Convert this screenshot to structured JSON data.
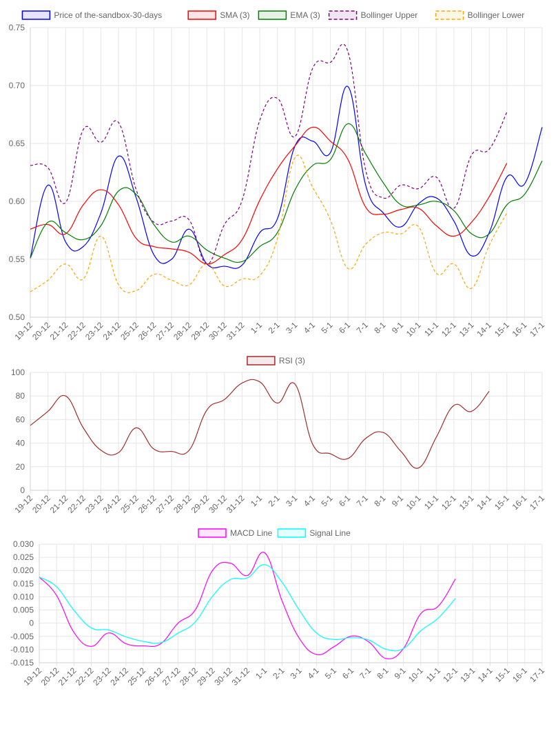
{
  "chart_data": [
    {
      "type": "line",
      "categories": [
        "19-12",
        "20-12",
        "21-12",
        "22-12",
        "23-12",
        "24-12",
        "25-12",
        "26-12",
        "27-12",
        "28-12",
        "29-12",
        "30-12",
        "31-12",
        "1-1",
        "2-1",
        "3-1",
        "4-1",
        "5-1",
        "6-1",
        "7-1",
        "8-1",
        "9-1",
        "10-1",
        "11-1",
        "12-1",
        "13-1",
        "14-1",
        "15-1",
        "16-1",
        "17-1"
      ],
      "ylim": [
        0.5,
        0.75
      ],
      "yticks": [
        "0.75",
        "0.70",
        "0.65",
        "0.60",
        "0.55",
        "0.50"
      ],
      "grid": true,
      "legend": "top",
      "series": [
        {
          "name": "Price of the-sandbox-30-days",
          "color": "#0000ff",
          "dashed": false,
          "values": [
            0.551,
            0.614,
            0.565,
            0.561,
            0.59,
            0.639,
            0.603,
            0.554,
            0.55,
            0.576,
            0.546,
            0.544,
            0.545,
            0.573,
            0.585,
            0.648,
            0.652,
            0.642,
            0.699,
            0.614,
            0.59,
            0.578,
            0.598,
            0.603,
            0.583,
            0.553,
            0.573,
            0.621,
            0.615,
            0.664
          ]
        },
        {
          "name": "SMA (3)",
          "color": "#ff0000",
          "dashed": false,
          "values": [
            0.576,
            0.58,
            0.572,
            0.597,
            0.61,
            0.597,
            0.568,
            0.561,
            0.559,
            0.556,
            0.546,
            0.554,
            0.567,
            0.601,
            0.628,
            0.648,
            0.664,
            0.652,
            0.636,
            0.595,
            0.589,
            0.593,
            0.594,
            0.579,
            0.57,
            0.582,
            0.604,
            0.633,
            null,
            null
          ]
        },
        {
          "name": "EMA (3)",
          "color": "#008000",
          "dashed": false,
          "values": [
            0.551,
            0.582,
            0.573,
            0.567,
            0.579,
            0.609,
            0.606,
            0.58,
            0.565,
            0.57,
            0.558,
            0.551,
            0.548,
            0.561,
            0.573,
            0.61,
            0.631,
            0.636,
            0.667,
            0.641,
            0.616,
            0.597,
            0.597,
            0.6,
            0.592,
            0.572,
            0.572,
            0.597,
            0.606,
            0.635
          ]
        },
        {
          "name": "Bollinger Upper",
          "color": "#800080",
          "dashed": true,
          "values": [
            0.631,
            0.629,
            0.599,
            0.662,
            0.651,
            0.668,
            0.61,
            0.582,
            0.583,
            0.584,
            0.546,
            0.58,
            0.601,
            0.67,
            0.689,
            0.656,
            0.715,
            0.72,
            0.729,
            0.627,
            0.603,
            0.614,
            0.611,
            0.621,
            0.594,
            0.64,
            0.645,
            0.677,
            null,
            null
          ]
        },
        {
          "name": "Bollinger Lower",
          "color": "#ffa500",
          "dashed": true,
          "values": [
            0.522,
            0.532,
            0.546,
            0.533,
            0.57,
            0.528,
            0.523,
            0.537,
            0.532,
            0.528,
            0.546,
            0.527,
            0.533,
            0.536,
            0.568,
            0.638,
            0.612,
            0.584,
            0.542,
            0.563,
            0.573,
            0.572,
            0.578,
            0.538,
            0.546,
            0.525,
            0.562,
            0.59,
            null,
            null
          ]
        }
      ]
    },
    {
      "type": "line",
      "categories": [
        "19-12",
        "20-12",
        "21-12",
        "22-12",
        "23-12",
        "24-12",
        "25-12",
        "26-12",
        "27-12",
        "28-12",
        "29-12",
        "30-12",
        "31-12",
        "1-1",
        "2-1",
        "3-1",
        "4-1",
        "5-1",
        "6-1",
        "7-1",
        "8-1",
        "9-1",
        "10-1",
        "11-1",
        "12-1",
        "13-1",
        "14-1",
        "15-1",
        "16-1",
        "17-1"
      ],
      "ylim": [
        0,
        100
      ],
      "yticks": [
        "100",
        "80",
        "60",
        "40",
        "20",
        "0"
      ],
      "grid": true,
      "legend": "top",
      "series": [
        {
          "name": "RSI (3)",
          "color": "#a52a2a",
          "dashed": false,
          "values": [
            55,
            67,
            80,
            53,
            34,
            32,
            53,
            35,
            33,
            34,
            68,
            77,
            91,
            92,
            74,
            90,
            39,
            31,
            27,
            44,
            49,
            33,
            19,
            45,
            72,
            67,
            84,
            null,
            null,
            null
          ]
        }
      ]
    },
    {
      "type": "line",
      "categories": [
        "19-12",
        "20-12",
        "21-12",
        "22-12",
        "23-12",
        "24-12",
        "25-12",
        "26-12",
        "27-12",
        "28-12",
        "29-12",
        "30-12",
        "31-12",
        "1-1",
        "2-1",
        "3-1",
        "4-1",
        "5-1",
        "6-1",
        "7-1",
        "8-1",
        "9-1",
        "10-1",
        "11-1",
        "12-1",
        "13-1",
        "14-1",
        "15-1",
        "16-1",
        "17-1"
      ],
      "ylim": [
        -0.015,
        0.03
      ],
      "yticks": [
        "0.030",
        "0.025",
        "0.020",
        "0.015",
        "0.010",
        "0.005",
        "0",
        "-0.005",
        "-0.010",
        "-0.015"
      ],
      "grid": true,
      "legend": "top",
      "series": [
        {
          "name": "MACD Line",
          "color": "#ff00ff",
          "dashed": false,
          "values": [
            0.0175,
            0.0105,
            -0.0035,
            -0.0088,
            -0.0037,
            -0.0078,
            -0.0086,
            -0.0078,
            0,
            0.0051,
            0.0201,
            0.0228,
            0.0181,
            0.0267,
            0.0085,
            -0.0058,
            -0.0119,
            -0.0089,
            -0.0049,
            -0.0071,
            -0.0134,
            -0.0096,
            0.0036,
            0.0064,
            0.0168,
            null,
            null,
            null,
            null,
            null
          ]
        },
        {
          "name": "Signal Line",
          "color": "#00ffff",
          "dashed": false,
          "values": [
            0.0175,
            0.0138,
            0.0049,
            -0.0018,
            -0.0026,
            -0.0052,
            -0.0069,
            -0.0074,
            -0.0038,
            0.0005,
            0.0103,
            0.0165,
            0.0172,
            0.0222,
            0.0155,
            0.0049,
            -0.0038,
            -0.0062,
            -0.0055,
            -0.0064,
            -0.0099,
            -0.0096,
            -0.0029,
            0.0019,
            0.0094,
            null,
            null,
            null,
            null,
            null
          ]
        }
      ]
    }
  ]
}
